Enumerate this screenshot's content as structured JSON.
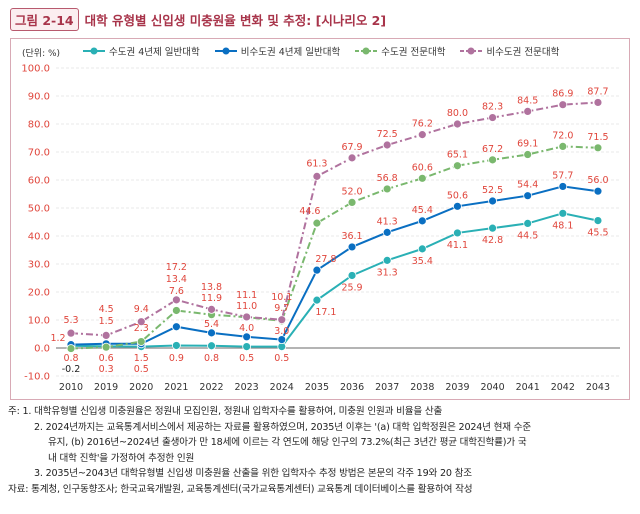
{
  "header": {
    "figure_no": "그림 2-14",
    "title": "대학 유형별 신입생 미충원율 변화 및 추정: [시나리오 2]"
  },
  "chart_data": {
    "type": "line",
    "unit_label": "(단위: %)",
    "categories": [
      "2010",
      "2019",
      "2020",
      "2021",
      "2022",
      "2023",
      "2024",
      "2035",
      "2036",
      "2037",
      "2038",
      "2039",
      "2040",
      "2041",
      "2042",
      "2043"
    ],
    "ylim": [
      -10,
      100
    ],
    "yticks": [
      "100.0",
      "90.0",
      "80.0",
      "70.0",
      "60.0",
      "50.0",
      "40.0",
      "30.0",
      "20.0",
      "10.0",
      "0.0",
      "-10.0"
    ],
    "grid": true,
    "legend_position": "top",
    "label_color": "#e0463c",
    "series": [
      {
        "name": "수도권 4년제 일반대학",
        "color": "#2ab0b5",
        "dash": "solid",
        "values": [
          0.8,
          0.6,
          0.5,
          0.9,
          0.8,
          0.5,
          0.5,
          17.1,
          25.9,
          31.3,
          35.4,
          41.1,
          42.8,
          44.5,
          48.1,
          45.5
        ]
      },
      {
        "name": "비수도권 4년제 일반대학",
        "color": "#0a6fc2",
        "dash": "solid",
        "values": [
          1.2,
          1.5,
          1.5,
          7.6,
          5.4,
          4.0,
          3.0,
          27.8,
          36.1,
          41.3,
          45.4,
          50.6,
          52.5,
          54.4,
          57.7,
          56.0
        ]
      },
      {
        "name": "수도권 전문대학",
        "color": "#7ab86e",
        "dash": "dashdot",
        "values": [
          -0.2,
          0.3,
          2.3,
          13.4,
          11.9,
          11.0,
          9.7,
          44.6,
          52.0,
          56.8,
          60.6,
          65.1,
          67.2,
          69.1,
          72.0,
          71.5
        ]
      },
      {
        "name": "비수도권 전문대학",
        "color": "#b0729e",
        "dash": "dashdot",
        "values": [
          5.3,
          4.5,
          9.4,
          17.2,
          13.8,
          11.1,
          10.1,
          61.3,
          67.9,
          72.5,
          76.2,
          80.0,
          82.3,
          84.5,
          86.9,
          87.7
        ]
      }
    ]
  },
  "notes": [
    "주: 1. 대학유형별 신입생 미충원율은 정원내 모집인원, 정원내 입학자수를 활용하여, 미충원 인원과 비율을 산출",
    "2. 2024년까지는 교육통계서비스에서 제공하는 자료를 활용하였으며, 2035년 이후는 '(a) 대학 입학정원은 2024년 현재 수준",
    "유지, (b) 2016년~2024년 출생아가 만 18세에 이르는 각 연도에 해당 인구의 73.2%(최근 3년간 평균 대학진학률)가 국",
    "내 대학 진학'을 가정하여 추정한 인원",
    "3. 2035년~2043년 대학유형별 신입생 미충원율 산출을 위한 입학자수 추정 방법은 본문의 각주 19와 20 참조",
    "자료: 통계청, 인구동향조사; 한국교육개발원, 교육통계센터(국가교육통계센터) 교육통계 데이터베이스를 활용하여 작성"
  ]
}
